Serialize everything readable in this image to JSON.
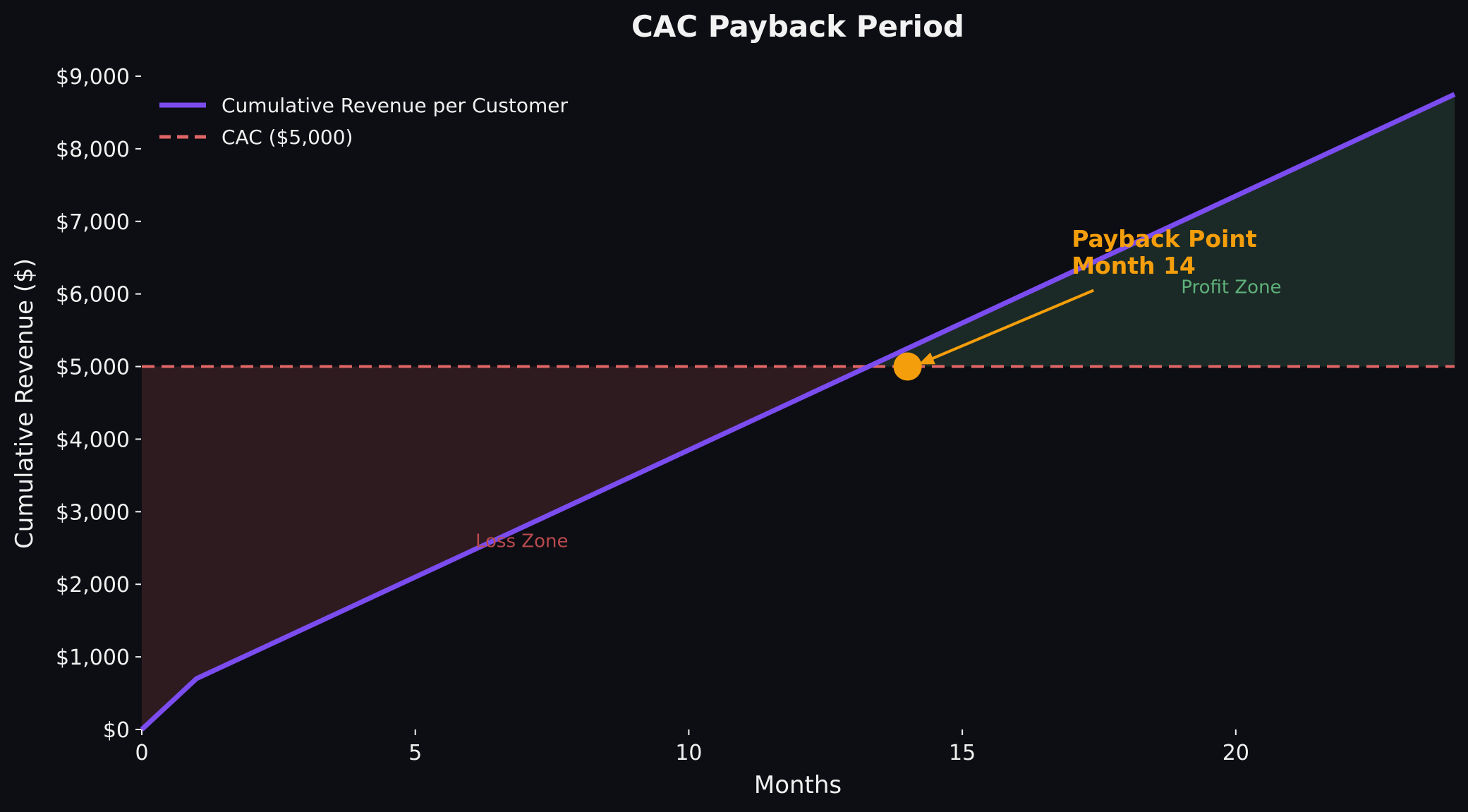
{
  "colors": {
    "background": "#0d0e13",
    "revenue_line": "#7b4cf0",
    "cac_line": "#e06666",
    "annotation": "#f59e0b",
    "loss_fill": "#2e1b20",
    "profit_fill": "#1b2a26",
    "loss_text": "#b84a4e",
    "profit_text": "#5fb07a",
    "text": "#f0f0f0"
  },
  "chart_data": {
    "type": "line",
    "title": "CAC Payback Period",
    "xlabel": "Months",
    "ylabel": "Cumulative Revenue ($)",
    "xlim": [
      0,
      24
    ],
    "ylim": [
      0,
      9000
    ],
    "x_ticks": [
      0,
      5,
      10,
      15,
      20
    ],
    "x_tick_labels": [
      "0",
      "5",
      "10",
      "15",
      "20"
    ],
    "y_ticks": [
      0,
      1000,
      2000,
      3000,
      4000,
      5000,
      6000,
      7000,
      8000,
      9000
    ],
    "y_tick_labels": [
      "$0",
      "$1,000",
      "$2,000",
      "$3,000",
      "$4,000",
      "$5,000",
      "$6,000",
      "$7,000",
      "$8,000",
      "$9,000"
    ],
    "grid": false,
    "legend_position": "top-left",
    "series": [
      {
        "name": "Cumulative Revenue per Customer",
        "style": "solid",
        "color": "#7b4cf0",
        "x": [
          0,
          1,
          24
        ],
        "y": [
          0,
          700,
          8750
        ]
      },
      {
        "name": "CAC ($5,000)",
        "style": "dashed",
        "color": "#e06666",
        "x": [
          0,
          24
        ],
        "y": [
          5000,
          5000
        ]
      }
    ],
    "payback_point": {
      "x": 14,
      "y": 5000
    },
    "annotations": [
      {
        "lines": [
          "Payback Point",
          "Month 14"
        ],
        "x": 17,
        "y": 6300,
        "arrow_from": {
          "x": 17.4,
          "y": 6050
        },
        "arrow_to": {
          "x": 14.2,
          "y": 5030
        }
      },
      {
        "text": "Profit Zone",
        "x": 19,
        "y": 6100
      },
      {
        "text": "Loss Zone",
        "x": 6.1,
        "y": 2600
      }
    ],
    "zones": [
      {
        "name": "loss",
        "x_range": [
          0,
          13.4
        ]
      },
      {
        "name": "profit",
        "x_range": [
          13.4,
          24
        ]
      }
    ]
  }
}
